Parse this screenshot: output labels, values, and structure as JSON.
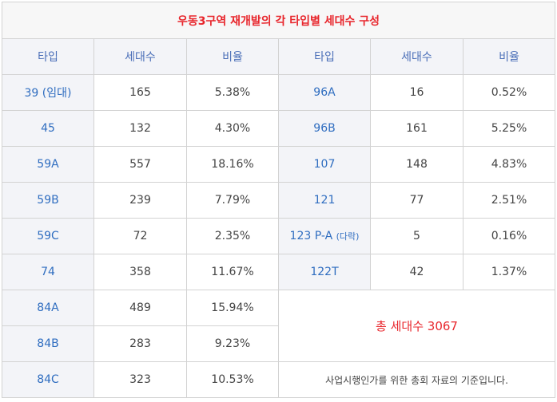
{
  "title": "우동3구역 재개발의 각 타입별 세대수 구성",
  "headers": [
    "타입",
    "세대수",
    "비율",
    "타입",
    "세대수",
    "비율"
  ],
  "left_rows": [
    {
      "type": "39 (임대)",
      "count": "165",
      "ratio": "5.38%"
    },
    {
      "type": "45",
      "count": "132",
      "ratio": "4.30%"
    },
    {
      "type": "59A",
      "count": "557",
      "ratio": "18.16%"
    },
    {
      "type": "59B",
      "count": "239",
      "ratio": "7.79%"
    },
    {
      "type": "59C",
      "count": "72",
      "ratio": "2.35%"
    },
    {
      "type": "74",
      "count": "358",
      "ratio": "11.67%"
    },
    {
      "type": "84A",
      "count": "489",
      "ratio": "15.94%"
    },
    {
      "type": "84B",
      "count": "283",
      "ratio": "9.23%"
    },
    {
      "type": "84C",
      "count": "323",
      "ratio": "10.53%"
    }
  ],
  "right_rows": [
    {
      "type": "96A",
      "count": "16",
      "ratio": "0.52%"
    },
    {
      "type": "96B",
      "count": "161",
      "ratio": "5.25%"
    },
    {
      "type": "107",
      "count": "148",
      "ratio": "4.83%"
    },
    {
      "type": "121",
      "count": "77",
      "ratio": "2.51%"
    },
    {
      "type": "123 P-A",
      "type_suffix": "(다락)",
      "count": "5",
      "ratio": "0.16%"
    },
    {
      "type": "122T",
      "count": "42",
      "ratio": "1.37%"
    }
  ],
  "total": "총 세대수 3067",
  "note": "사업시행인가를 위한 총회 자료의 기준입니다."
}
